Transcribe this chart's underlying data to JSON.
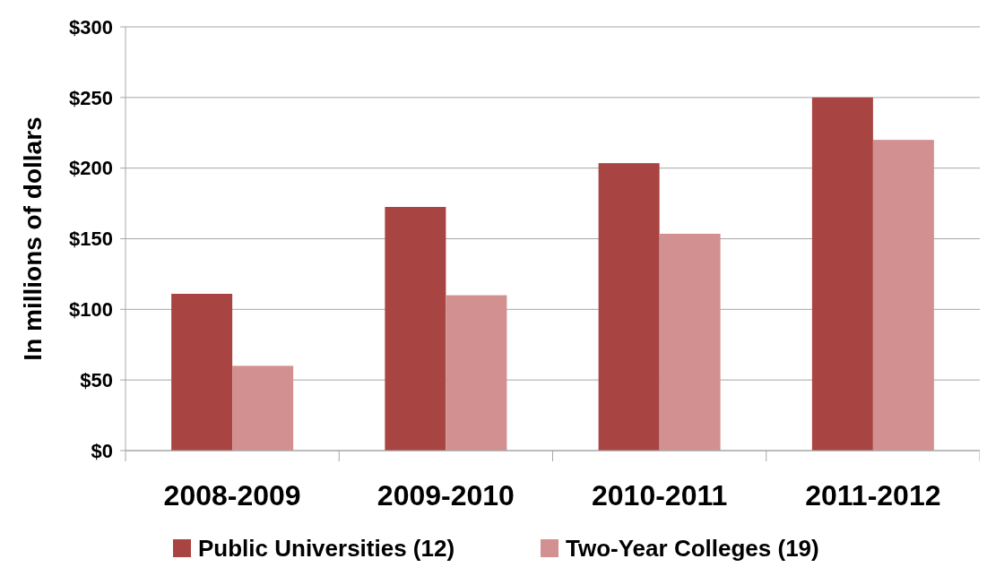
{
  "chart_data": {
    "type": "bar",
    "ylabel": "In millions of dollars",
    "categories": [
      "2008-2009",
      "2009-2010",
      "2010-2011",
      "2011-2012"
    ],
    "series": [
      {
        "name": "Public Universities (12)",
        "color": "#a84442",
        "values": [
          111,
          172.5,
          203.5,
          250
        ]
      },
      {
        "name": "Two-Year Colleges (19)",
        "color": "#d29190",
        "values": [
          60,
          110,
          153.5,
          220
        ]
      }
    ],
    "ylim": [
      0,
      300
    ],
    "yticks": [
      {
        "value": 0,
        "label": "$0"
      },
      {
        "value": 50,
        "label": "$50"
      },
      {
        "value": 100,
        "label": "$100"
      },
      {
        "value": 150,
        "label": "$150"
      },
      {
        "value": 200,
        "label": "$200"
      },
      {
        "value": 250,
        "label": "$250"
      },
      {
        "value": 300,
        "label": "$300"
      }
    ],
    "grid": "y",
    "legend": "bottom"
  }
}
